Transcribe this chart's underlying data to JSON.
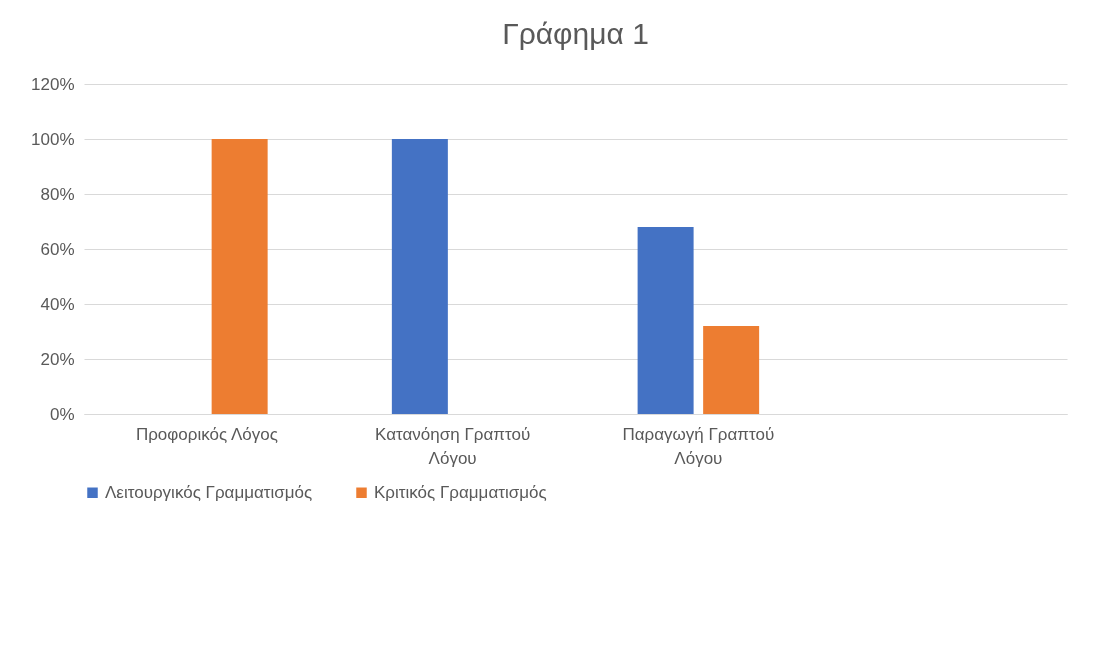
{
  "chart_data": {
    "type": "bar",
    "title": "Γράφημα 1",
    "categories": [
      "Προφορικός Λόγος",
      "Κατανόηση Γραπτού Λόγου",
      "Παραγωγή Γραπτού Λόγου",
      null
    ],
    "series": [
      {
        "name": "Λειτουργικός Γραμματισμός",
        "color": "#4472c4",
        "values": [
          null,
          100,
          68,
          null
        ]
      },
      {
        "name": "Κριτικός Γραμματισμός",
        "color": "#ed7d31",
        "values": [
          100,
          null,
          32,
          null
        ]
      }
    ],
    "ylim": [
      0,
      120
    ],
    "yticks": [
      {
        "value": 0,
        "label": "0%"
      },
      {
        "value": 20,
        "label": "20%"
      },
      {
        "value": 40,
        "label": "40%"
      },
      {
        "value": 60,
        "label": "60%"
      },
      {
        "value": 80,
        "label": "80%"
      },
      {
        "value": 100,
        "label": "100%"
      },
      {
        "value": 120,
        "label": "120%"
      }
    ],
    "grid": "y",
    "legend": "bottom"
  }
}
